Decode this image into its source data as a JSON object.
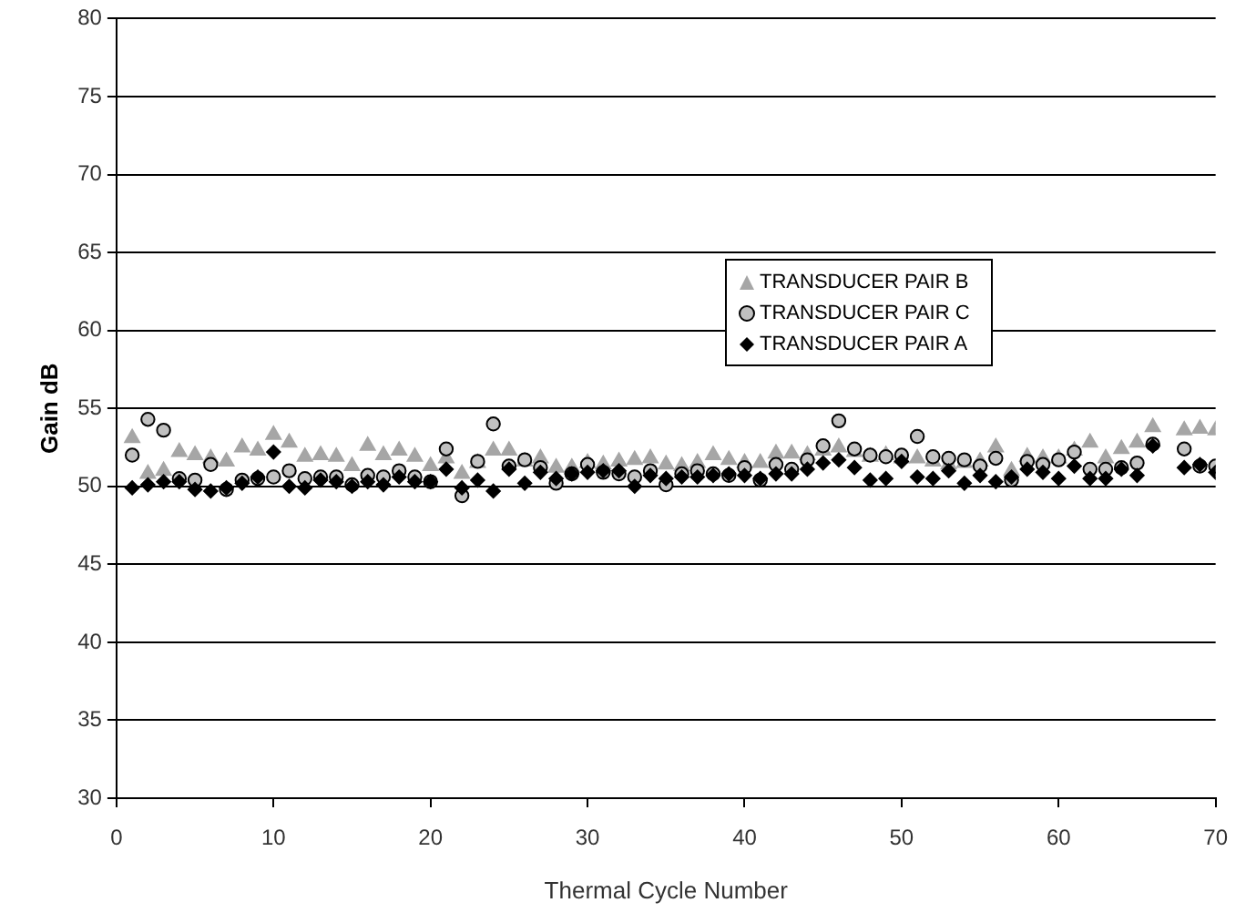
{
  "chart_data": {
    "type": "scatter",
    "xlabel": "Thermal Cycle Number",
    "ylabel": "Gain dB",
    "x": [
      1,
      2,
      3,
      4,
      5,
      6,
      7,
      8,
      9,
      10,
      11,
      12,
      13,
      14,
      15,
      16,
      17,
      18,
      19,
      20,
      21,
      22,
      23,
      24,
      25,
      26,
      27,
      28,
      29,
      30,
      31,
      32,
      33,
      34,
      35,
      36,
      37,
      38,
      39,
      40,
      41,
      42,
      43,
      44,
      45,
      46,
      47,
      48,
      49,
      50,
      51,
      52,
      53,
      54,
      55,
      56,
      57,
      58,
      59,
      60,
      61,
      62,
      63,
      64,
      65,
      66,
      68,
      69,
      70
    ],
    "series": [
      {
        "name": "TRANSDUCER PAIR B",
        "color": "#a6a6a6",
        "marker": "triangle",
        "values": [
          53.1,
          50.8,
          51,
          52.2,
          52,
          51.8,
          51.6,
          52.5,
          52.3,
          53.3,
          52.8,
          51.9,
          52,
          51.9,
          51.3,
          52.6,
          52,
          52.3,
          51.9,
          51.3,
          51.8,
          50.8,
          51.5,
          52.3,
          52.3,
          51.6,
          51.8,
          51.2,
          51.2,
          51.5,
          51.4,
          51.6,
          51.7,
          51.8,
          51.4,
          51.3,
          51.5,
          52,
          51.7,
          51.5,
          51.5,
          52.1,
          52.1,
          52,
          52.3,
          52.5,
          52.2,
          51.9,
          52,
          51.8,
          51.8,
          51.6,
          51.4,
          51.5,
          51.6,
          52.5,
          51,
          51.9,
          51.8,
          51.8,
          52.3,
          52.8,
          51.8,
          52.4,
          52.8,
          53.8,
          53.6,
          53.7,
          53.6
        ]
      },
      {
        "name": "TRANSDUCER PAIR C",
        "color": "#c0c0c0",
        "marker": "circle",
        "values": [
          52,
          54.3,
          53.6,
          50.5,
          50.4,
          51.4,
          49.8,
          50.4,
          50.5,
          50.6,
          51,
          50.5,
          50.6,
          50.6,
          50.1,
          50.7,
          50.6,
          51,
          50.6,
          50.3,
          52.4,
          49.4,
          51.6,
          54,
          51.3,
          51.7,
          51.2,
          50.2,
          50.8,
          51.4,
          50.9,
          50.8,
          50.6,
          51,
          50.1,
          50.8,
          51,
          50.8,
          50.7,
          51.2,
          50.4,
          51.4,
          51.1,
          51.7,
          52.6,
          54.2,
          52.4,
          52,
          51.9,
          52,
          53.2,
          51.9,
          51.8,
          51.7,
          51.3,
          51.8,
          50.4,
          51.6,
          51.4,
          51.7,
          52.2,
          51.1,
          51.1,
          51.2,
          51.5,
          52.7,
          52.4,
          51.3,
          51.3
        ]
      },
      {
        "name": "TRANSDUCER PAIR A",
        "color": "#000000",
        "marker": "diamond",
        "values": [
          49.9,
          50.1,
          50.3,
          50.3,
          49.8,
          49.7,
          49.9,
          50.2,
          50.6,
          52.2,
          50,
          49.9,
          50.4,
          50.3,
          50,
          50.3,
          50.1,
          50.6,
          50.3,
          50.3,
          51.1,
          49.9,
          50.4,
          49.7,
          51.1,
          50.2,
          50.9,
          50.5,
          50.8,
          50.9,
          51,
          51,
          50,
          50.7,
          50.5,
          50.6,
          50.6,
          50.7,
          50.8,
          50.7,
          50.5,
          50.8,
          50.8,
          51.1,
          51.5,
          51.7,
          51.2,
          50.4,
          50.5,
          51.6,
          50.6,
          50.5,
          51,
          50.2,
          50.7,
          50.3,
          50.6,
          51.1,
          50.9,
          50.5,
          51.3,
          50.5,
          50.5,
          51.1,
          50.7,
          52.6,
          51.2,
          51.4,
          50.9
        ]
      }
    ],
    "xlim": [
      0,
      70
    ],
    "xticks": [
      0,
      10,
      20,
      30,
      40,
      50,
      60,
      70
    ],
    "ylim": [
      30,
      80
    ],
    "yticks": [
      30,
      35,
      40,
      45,
      50,
      55,
      60,
      65,
      70,
      75,
      80
    ],
    "grid": "y",
    "legend": "right"
  }
}
